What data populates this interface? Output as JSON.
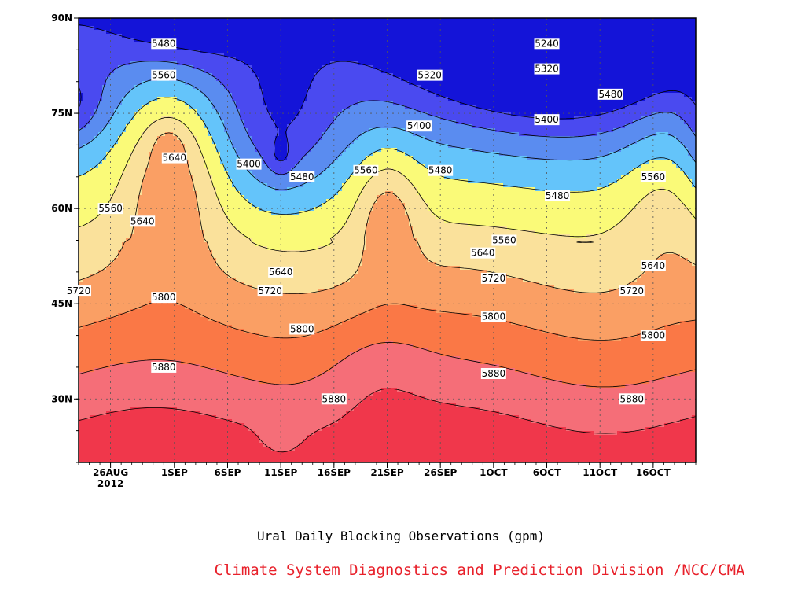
{
  "chart_data": {
    "type": "heatmap",
    "title": "Ural Daily Blocking Observations (gpm)",
    "credit": "Climate System Diagnostics and Prediction Division /NCC/CMA",
    "x_ticks": [
      "26AUG",
      "1SEP",
      "6SEP",
      "11SEP",
      "16SEP",
      "21SEP",
      "26SEP",
      "1OCT",
      "6OCT",
      "11OCT",
      "16OCT"
    ],
    "x_year": "2012",
    "x_range": [
      "2012-08-23",
      "2012-10-20"
    ],
    "y_ticks": [
      "30N",
      "45N",
      "60N",
      "75N",
      "90N"
    ],
    "y_range": [
      20,
      90
    ],
    "contour_levels": [
      5240,
      5320,
      5400,
      5480,
      5560,
      5640,
      5720,
      5800,
      5880
    ],
    "level_colors": [
      "#000a6e",
      "#1414d8",
      "#4a4af0",
      "#5a8cf0",
      "#64c4fa",
      "#fafa78",
      "#fae19b",
      "#fa9f64",
      "#fa7846",
      "#f56e78",
      "#f0374b"
    ],
    "contour_labels": [
      {
        "text": "5480",
        "x": "2012-08-31",
        "y": 86
      },
      {
        "text": "5560",
        "x": "2012-08-31",
        "y": 81
      },
      {
        "text": "5640",
        "x": "2012-09-01",
        "y": 68
      },
      {
        "text": "5400",
        "x": "2012-09-08",
        "y": 67
      },
      {
        "text": "5480",
        "x": "2012-09-13",
        "y": 65
      },
      {
        "text": "5560",
        "x": "2012-08-26",
        "y": 60
      },
      {
        "text": "5640",
        "x": "2012-08-29",
        "y": 58
      },
      {
        "text": "5720",
        "x": "2012-08-23",
        "y": 47
      },
      {
        "text": "5800",
        "x": "2012-08-31",
        "y": 46
      },
      {
        "text": "5880",
        "x": "2012-08-31",
        "y": 35
      },
      {
        "text": "5640",
        "x": "2012-09-11",
        "y": 50
      },
      {
        "text": "5720",
        "x": "2012-09-10",
        "y": 47
      },
      {
        "text": "5800",
        "x": "2012-09-13",
        "y": 41
      },
      {
        "text": "5880",
        "x": "2012-09-16",
        "y": 30
      },
      {
        "text": "5560",
        "x": "2012-09-19",
        "y": 66
      },
      {
        "text": "5320",
        "x": "2012-09-25",
        "y": 81
      },
      {
        "text": "5400",
        "x": "2012-09-24",
        "y": 73
      },
      {
        "text": "5480",
        "x": "2012-09-26",
        "y": 66
      },
      {
        "text": "5640",
        "x": "2012-09-30",
        "y": 53
      },
      {
        "text": "5720",
        "x": "2012-10-01",
        "y": 49
      },
      {
        "text": "5560",
        "x": "2012-10-02",
        "y": 55
      },
      {
        "text": "5800",
        "x": "2012-10-01",
        "y": 43
      },
      {
        "text": "5880",
        "x": "2012-10-01",
        "y": 34
      },
      {
        "text": "5240",
        "x": "2012-10-06",
        "y": 86
      },
      {
        "text": "5320",
        "x": "2012-10-06",
        "y": 82
      },
      {
        "text": "5400",
        "x": "2012-10-06",
        "y": 74
      },
      {
        "text": "5480",
        "x": "2012-10-07",
        "y": 62
      },
      {
        "text": "5480",
        "x": "2012-10-12",
        "y": 78
      },
      {
        "text": "5560",
        "x": "2012-10-16",
        "y": 65
      },
      {
        "text": "5640",
        "x": "2012-10-16",
        "y": 51
      },
      {
        "text": "5720",
        "x": "2012-10-14",
        "y": 47
      },
      {
        "text": "5800",
        "x": "2012-10-16",
        "y": 40
      },
      {
        "text": "5880",
        "x": "2012-10-14",
        "y": 30
      }
    ],
    "grid": true
  }
}
